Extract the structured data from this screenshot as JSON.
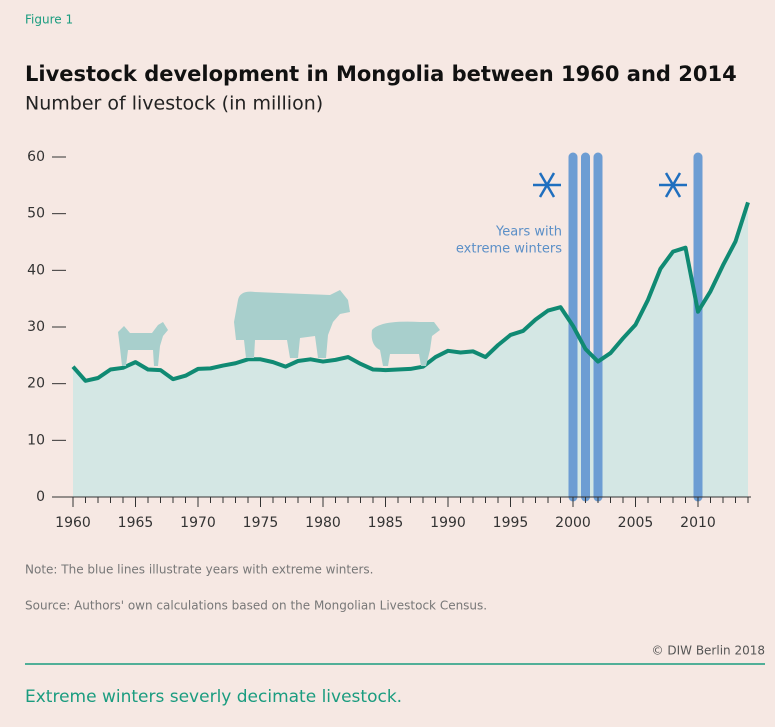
{
  "figure_label": "Figure 1",
  "chart_data": {
    "type": "line",
    "title": "Livestock development in Mongolia between 1960 and 2014",
    "subtitle": "Number of livestock (in million)",
    "x": [
      1960,
      1961,
      1962,
      1963,
      1964,
      1965,
      1966,
      1967,
      1968,
      1969,
      1970,
      1971,
      1972,
      1973,
      1974,
      1975,
      1976,
      1977,
      1978,
      1979,
      1980,
      1981,
      1982,
      1983,
      1984,
      1985,
      1986,
      1987,
      1988,
      1989,
      1990,
      1991,
      1992,
      1993,
      1994,
      1995,
      1996,
      1997,
      1998,
      1999,
      2000,
      2001,
      2002,
      2003,
      2004,
      2005,
      2006,
      2007,
      2008,
      2009,
      2010,
      2011,
      2012,
      2013,
      2014
    ],
    "series": [
      {
        "color": "#108a73",
        "values": [
          23.0,
          20.5,
          21.0,
          22.5,
          22.8,
          23.8,
          22.5,
          22.4,
          20.8,
          21.4,
          22.6,
          22.7,
          23.2,
          23.6,
          24.3,
          24.3,
          23.8,
          23.0,
          24.0,
          24.3,
          23.9,
          24.2,
          24.7,
          23.5,
          22.5,
          22.4,
          22.5,
          22.6,
          23.0,
          24.7,
          25.8,
          25.5,
          25.7,
          24.7,
          26.8,
          28.6,
          29.3,
          31.3,
          32.9,
          33.5,
          30.2,
          26.1,
          23.9,
          25.4,
          28.0,
          30.4,
          34.8,
          40.3,
          43.3,
          44.0,
          32.7,
          36.3,
          40.9,
          45.1,
          52.0
        ]
      }
    ],
    "area_color": "#d4e7e4",
    "highlight_years": [
      2000,
      2001,
      2002,
      2010
    ],
    "highlight_color": "#6d9dd3",
    "highlight_label": [
      "Years with",
      "extreme winters"
    ],
    "xlim": [
      1960,
      2014
    ],
    "xticks": [
      1960,
      1965,
      1970,
      1975,
      1980,
      1985,
      1990,
      1995,
      2000,
      2005,
      2010
    ],
    "ylim": [
      0,
      60
    ],
    "yticks": [
      0,
      10,
      20,
      30,
      40,
      50,
      60
    ]
  },
  "note": "Note: The blue lines illustrate years with extreme winters.",
  "source": "Source: Authors' own calculations based on the Mongolian Livestock Census.",
  "copyright": "© DIW Berlin 2018",
  "caption": "Extreme winters severly decimate livestock."
}
